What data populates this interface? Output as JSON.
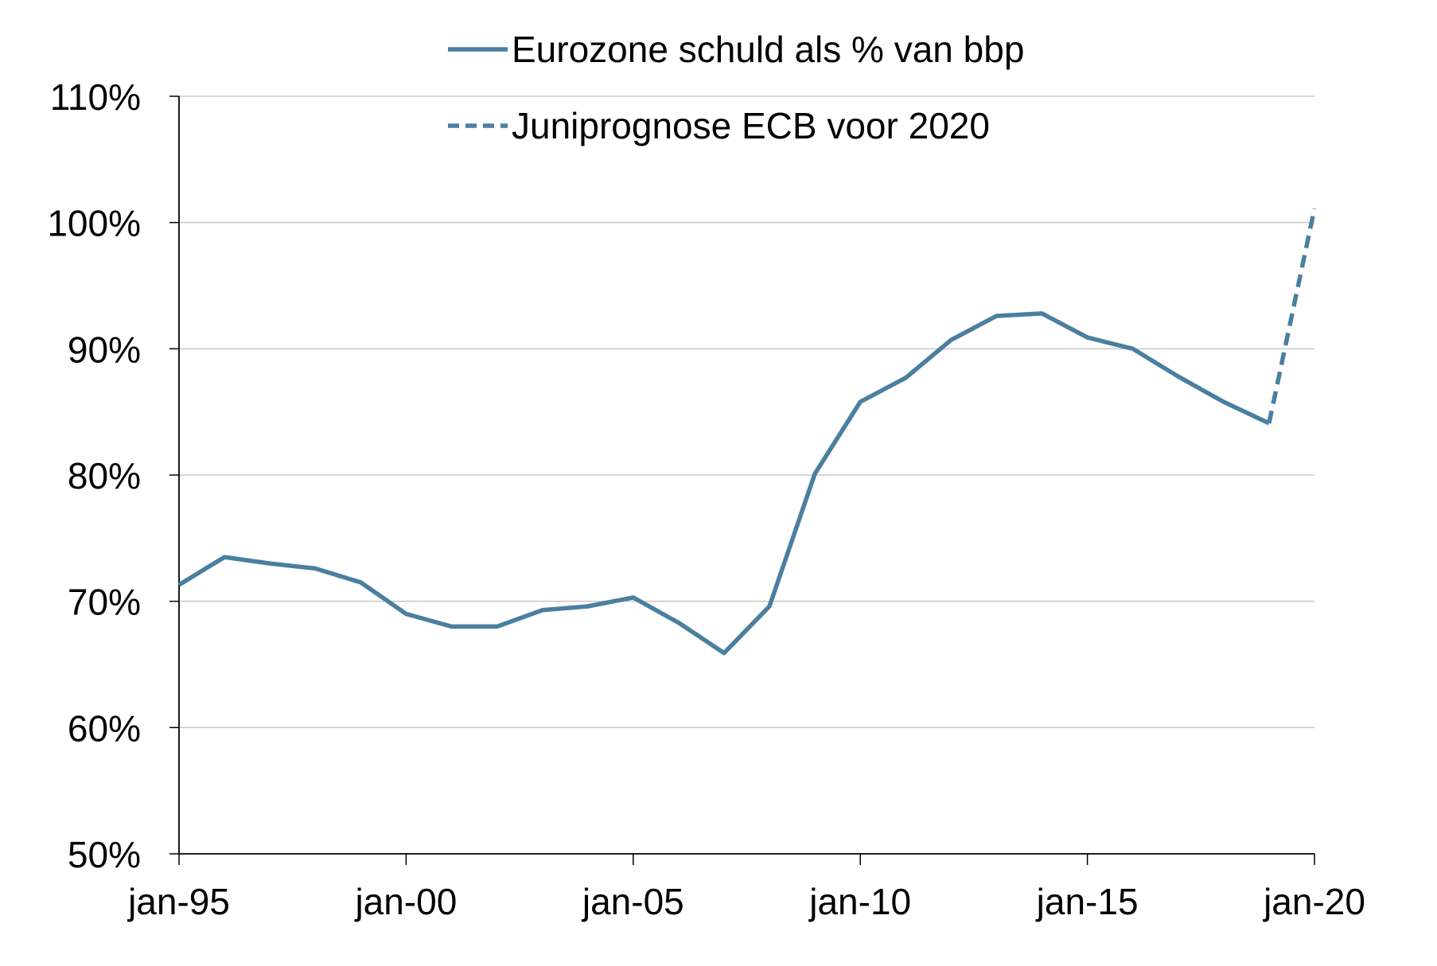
{
  "chart_data": {
    "type": "line",
    "title": "",
    "xlabel": "",
    "ylabel": "",
    "x_ticks": [
      "jan-95",
      "jan-00",
      "jan-05",
      "jan-10",
      "jan-15",
      "jan-20"
    ],
    "y_ticks": [
      "50%",
      "60%",
      "70%",
      "80%",
      "90%",
      "100%",
      "110%"
    ],
    "xlim": [
      "1995-01",
      "2020-01"
    ],
    "ylim": [
      50,
      110
    ],
    "grid": "horizontal",
    "legend_position": "top",
    "series": [
      {
        "name": "Eurozone schuld als % van bbp",
        "style": "solid",
        "color": "#4a7fa0",
        "x": [
          "1995-01",
          "1996-01",
          "1997-01",
          "1998-01",
          "1999-01",
          "2000-01",
          "2001-01",
          "2002-01",
          "2003-01",
          "2004-01",
          "2005-01",
          "2006-01",
          "2007-01",
          "2008-01",
          "2009-01",
          "2010-01",
          "2011-01",
          "2012-01",
          "2013-01",
          "2014-01",
          "2015-01",
          "2016-01",
          "2017-01",
          "2018-01",
          "2019-01"
        ],
        "values": [
          71.3,
          73.5,
          73.0,
          72.6,
          71.5,
          69.0,
          68.0,
          68.0,
          69.3,
          69.6,
          70.3,
          68.3,
          65.9,
          69.6,
          80.1,
          85.8,
          87.7,
          90.7,
          92.6,
          92.8,
          90.9,
          90.0,
          87.8,
          85.8,
          84.1
        ]
      },
      {
        "name": "Juniprognose ECB voor 2020",
        "style": "dashed",
        "color": "#4a7fa0",
        "x": [
          "2019-01",
          "2020-01"
        ],
        "values": [
          84.1,
          101.1
        ]
      }
    ]
  }
}
